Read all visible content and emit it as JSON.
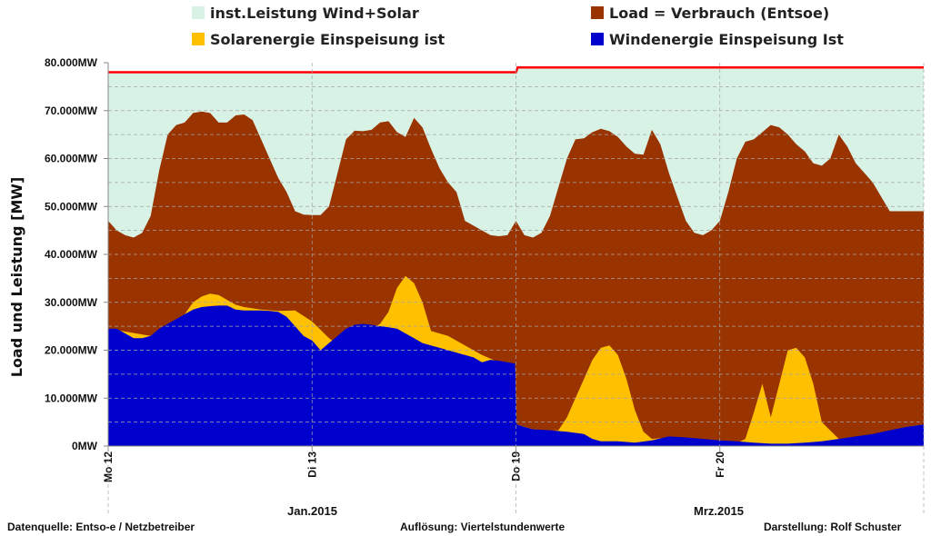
{
  "legend": [
    {
      "label": "inst.Leistung Wind+Solar",
      "color": "#d8f2e6"
    },
    {
      "label": "Load =  Verbrauch (Entsoe)",
      "color": "#993300"
    },
    {
      "label": "Solarenergie Einspeisung ist",
      "color": "#ffc000"
    },
    {
      "label": "Windenergie Einspeisung Ist",
      "color": "#0000cc"
    }
  ],
  "footer": {
    "source": "Datenquelle:  Entso-e  / Netzbetreiber",
    "resolution": "Auflösung: Viertelstundenwerte",
    "author": "Darstellung: Rolf Schuster"
  },
  "months": [
    "Jan.2015",
    "Mrz.2015"
  ],
  "chart_data": {
    "type": "area",
    "ylabel": "Load und Leistung  [MW]",
    "ylim": [
      0,
      80000
    ],
    "yticks": [
      "0MW",
      "10.000MW",
      "20.000MW",
      "30.000MW",
      "40.000MW",
      "50.000MW",
      "60.000MW",
      "70.000MW",
      "80.000MW"
    ],
    "xlim": [
      0,
      96
    ],
    "xticks": [
      {
        "x": 0,
        "label": "Mo 12"
      },
      {
        "x": 24,
        "label": "Di 13"
      },
      {
        "x": 48,
        "label": "Do 19"
      },
      {
        "x": 72,
        "label": "Fr 20"
      }
    ],
    "grid": true,
    "colors": {
      "installed": "#d8f2e6",
      "load": "#993300",
      "solar": "#ffc000",
      "wind": "#0000cc",
      "installed_line": "#ff0000"
    },
    "series": [
      {
        "name": "inst.Leistung Wind+Solar",
        "key": "installed",
        "x": [
          0,
          48,
          48.2,
          96
        ],
        "y": [
          78000,
          78000,
          79000,
          79000
        ]
      },
      {
        "name": "Load =  Verbrauch (Entsoe)",
        "key": "load",
        "x": [
          0,
          1,
          2,
          3,
          4,
          5,
          6,
          7,
          8,
          9,
          10,
          11,
          12,
          13,
          14,
          15,
          16,
          17,
          18,
          19,
          20,
          21,
          22,
          23,
          24,
          25,
          26,
          27,
          28,
          29,
          30,
          31,
          32,
          33,
          34,
          35,
          36,
          37,
          38,
          39,
          40,
          41,
          42,
          43,
          44,
          45,
          46,
          47,
          48,
          49,
          50,
          51,
          52,
          53,
          54,
          55,
          56,
          57,
          58,
          59,
          60,
          61,
          62,
          63,
          64,
          65,
          66,
          67,
          68,
          69,
          70,
          71,
          72,
          73,
          74,
          75,
          76,
          77,
          78,
          79,
          80,
          81,
          82,
          83,
          84,
          85,
          86,
          87,
          88,
          89,
          90,
          91,
          92,
          93,
          94,
          95,
          96
        ],
        "y": [
          47000,
          45000,
          44000,
          43500,
          44500,
          48000,
          57500,
          65000,
          67000,
          67500,
          69500,
          69800,
          69500,
          67500,
          67500,
          69000,
          69200,
          68000,
          64000,
          60000,
          56000,
          53000,
          49000,
          48300,
          48200,
          48200,
          50000,
          57000,
          64000,
          65800,
          65700,
          66000,
          67500,
          67800,
          65500,
          64500,
          68500,
          66500,
          62000,
          58000,
          55000,
          53000,
          47000,
          46000,
          45000,
          44000,
          43800,
          44000,
          47000,
          44000,
          43500,
          44500,
          48000,
          54000,
          60000,
          64000,
          64200,
          65500,
          66200,
          65700,
          64500,
          62500,
          61000,
          60800,
          66000,
          63000,
          57000,
          52000,
          47000,
          44500,
          44000,
          45000,
          47000,
          53000,
          60000,
          63500,
          64000,
          65500,
          67000,
          66500,
          65000,
          63000,
          61500,
          59000,
          58500,
          60000,
          65000,
          62500,
          59000,
          57000,
          55000,
          52000,
          49000,
          49000,
          49000,
          49000,
          49000
        ]
      },
      {
        "name": "Solarenergie Einspeisung ist",
        "key": "solar",
        "x": [
          0,
          5,
          8,
          9,
          10,
          11,
          12,
          13,
          14,
          15,
          16,
          18,
          20,
          22,
          24,
          26,
          28,
          29,
          30,
          31,
          32,
          33,
          34,
          35,
          36,
          37,
          38,
          40,
          42,
          44,
          46,
          47.9,
          48.1,
          50,
          52,
          53,
          54,
          55,
          56,
          57,
          58,
          59,
          60,
          61,
          62,
          63,
          64,
          66,
          68,
          70,
          72,
          73,
          74,
          75,
          76,
          77,
          78,
          79,
          80,
          81,
          82,
          83,
          84,
          86,
          88,
          90,
          92,
          94,
          96
        ],
        "y": [
          24500,
          23000,
          25800,
          27500,
          30000,
          31200,
          31800,
          31500,
          30500,
          29500,
          29000,
          28500,
          28200,
          28300,
          26000,
          22500,
          20000,
          21500,
          23000,
          24500,
          25500,
          28000,
          33000,
          35500,
          34000,
          30000,
          24000,
          23000,
          21000,
          19000,
          17500,
          17000,
          4500,
          3500,
          3200,
          3300,
          6000,
          10000,
          14000,
          18000,
          20500,
          21000,
          19000,
          14000,
          7500,
          3000,
          1500,
          1800,
          1500,
          1200,
          1000,
          700,
          600,
          1500,
          7000,
          13000,
          6000,
          13000,
          20000,
          20500,
          18500,
          13000,
          5000,
          1500,
          1500,
          2000,
          3000,
          4000,
          4500
        ]
      },
      {
        "name": "Windenergie Einspeisung Ist",
        "key": "wind",
        "x": [
          0,
          1,
          2,
          3,
          4,
          5,
          6,
          7,
          8,
          9,
          10,
          11,
          12,
          13,
          14,
          15,
          16,
          17,
          18,
          19,
          20,
          21,
          22,
          23,
          24,
          25,
          26,
          27,
          28,
          29,
          30,
          31,
          32,
          33,
          34,
          35,
          36,
          37,
          38,
          39,
          40,
          41,
          42,
          43,
          44,
          45,
          46,
          47,
          47.9,
          48.1,
          49,
          50,
          52,
          54,
          56,
          57,
          58,
          60,
          62,
          64,
          66,
          68,
          70,
          72,
          74,
          76,
          78,
          80,
          82,
          84,
          86,
          88,
          90,
          92,
          94,
          96
        ],
        "y": [
          24500,
          24500,
          23500,
          22500,
          22500,
          23000,
          24500,
          25500,
          26500,
          27500,
          28500,
          29000,
          29200,
          29300,
          29300,
          28500,
          28300,
          28300,
          28300,
          28200,
          28000,
          27000,
          25000,
          23000,
          22000,
          20000,
          21500,
          23000,
          24500,
          25300,
          25500,
          25300,
          25000,
          24800,
          24500,
          23500,
          22500,
          21500,
          21000,
          20500,
          20000,
          19500,
          19000,
          18500,
          17500,
          18000,
          17800,
          17500,
          17200,
          4500,
          4000,
          3500,
          3300,
          3000,
          2500,
          1500,
          1000,
          1000,
          700,
          1200,
          2000,
          1800,
          1500,
          1200,
          1000,
          700,
          500,
          500,
          700,
          1000,
          1500,
          2000,
          2500,
          3300,
          4000,
          4500
        ]
      }
    ]
  }
}
